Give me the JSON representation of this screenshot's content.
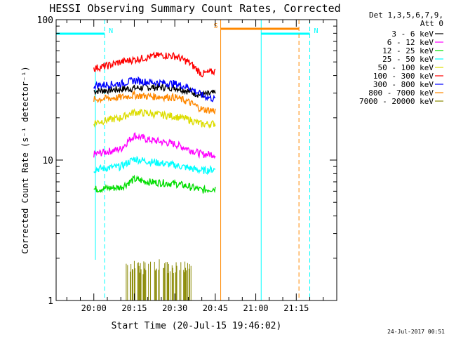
{
  "chart_data": {
    "type": "line",
    "title": "HESSI Observing Summary Count Rates, Corrected",
    "xlabel": "Start Time (20-Jul-15 19:46:02)",
    "ylabel": "Corrected Count Rate (s⁻¹ detector⁻¹)",
    "yscale": "log",
    "ylim": [
      1,
      100
    ],
    "xlim": [
      "19:46:02",
      "21:30:00"
    ],
    "x_ticks": [
      "20:00",
      "20:15",
      "20:30",
      "20:45",
      "21:00",
      "21:15"
    ],
    "y_ticks": [
      "1",
      "10",
      "100"
    ],
    "grid": false,
    "legend_position": "top-right",
    "legend_title": [
      "Det 1,3,5,6,7,9,",
      "Att 0"
    ],
    "footer_date": "24-Jul-2017 00:51",
    "series": [
      {
        "name": "3 - 6 keV",
        "color": "#000000",
        "x": [
          "20:00",
          "20:10",
          "20:20",
          "20:30",
          "20:35",
          "20:40",
          "20:45"
        ],
        "y": [
          31,
          32,
          33,
          33,
          31,
          29,
          30
        ]
      },
      {
        "name": "6 - 12 keV",
        "color": "#ff00ff",
        "x": [
          "20:00",
          "20:10",
          "20:15",
          "20:20",
          "20:30",
          "20:35",
          "20:40",
          "20:45"
        ],
        "y": [
          11,
          12,
          15,
          14,
          13,
          12,
          11,
          11
        ]
      },
      {
        "name": "12 - 25 keV",
        "color": "#00dd00",
        "x": [
          "20:00",
          "20:10",
          "20:15",
          "20:20",
          "20:30",
          "20:35",
          "20:40",
          "20:45"
        ],
        "y": [
          6.2,
          6.4,
          7.3,
          7.0,
          6.8,
          6.5,
          6.1,
          6.3
        ]
      },
      {
        "name": "25 - 50 keV",
        "color": "#00ffff",
        "x": [
          "20:00",
          "20:10",
          "20:15",
          "20:20",
          "20:30",
          "20:35",
          "20:40",
          "20:45"
        ],
        "y": [
          8.6,
          9.0,
          10.2,
          9.8,
          9.2,
          8.8,
          8.4,
          8.6
        ]
      },
      {
        "name": "50 - 100 keV",
        "color": "#dddd00",
        "x": [
          "20:00",
          "20:10",
          "20:15",
          "20:20",
          "20:30",
          "20:35",
          "20:40",
          "20:45"
        ],
        "y": [
          18.5,
          20,
          22,
          21.5,
          20.5,
          19.5,
          18,
          18.2
        ]
      },
      {
        "name": "100 - 300 keV",
        "color": "#ff0000",
        "x": [
          "20:00",
          "20:05",
          "20:10",
          "20:15",
          "20:20",
          "20:25",
          "20:30",
          "20:35",
          "20:40",
          "20:45"
        ],
        "y": [
          45,
          47,
          50,
          52,
          54,
          56,
          55,
          50,
          41,
          43
        ]
      },
      {
        "name": "300 - 800 keV",
        "color": "#0000ff",
        "x": [
          "20:00",
          "20:10",
          "20:15",
          "20:20",
          "20:30",
          "20:35",
          "20:40",
          "20:45"
        ],
        "y": [
          34,
          35,
          37,
          36,
          35,
          33,
          29,
          27
        ]
      },
      {
        "name": "800 - 7000 keV",
        "color": "#ff8800",
        "x": [
          "20:00",
          "20:10",
          "20:15",
          "20:20",
          "20:30",
          "20:35",
          "20:40",
          "20:45"
        ],
        "y": [
          27,
          28,
          29,
          28.5,
          28,
          26,
          23,
          22.5
        ]
      },
      {
        "name": "7000 - 20000 keV",
        "color": "#888800",
        "x": [
          "20:12",
          "20:18",
          "20:24",
          "20:30",
          "20:36"
        ],
        "y": [
          1.9,
          1.8,
          1.9,
          1.8,
          1.9
        ]
      }
    ],
    "flags": [
      {
        "label": "N",
        "color": "#00ffff",
        "start": "19:46:02",
        "end": "20:04",
        "dashed_at": "20:04"
      },
      {
        "label": "N",
        "color": "#00ffff",
        "start": "21:02",
        "end": "21:20",
        "dashed_at": "21:20"
      },
      {
        "label": "S",
        "color": "#ff8800",
        "start": "20:47",
        "end": "21:16",
        "dashed_at": "21:16"
      }
    ]
  }
}
